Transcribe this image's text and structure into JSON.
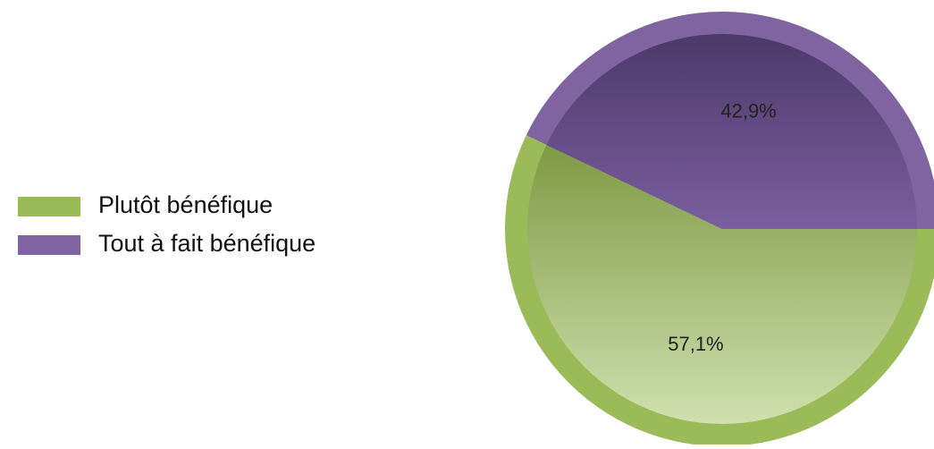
{
  "chart_data": {
    "type": "pie",
    "categories": [
      "Plutôt bénéfique",
      "Tout à fait bénéfique"
    ],
    "values": [
      57.1,
      42.9
    ],
    "value_labels": [
      "57,1%",
      "42,9%"
    ],
    "colors": [
      "#9bbb59",
      "#8064a2"
    ],
    "legend": "left"
  }
}
